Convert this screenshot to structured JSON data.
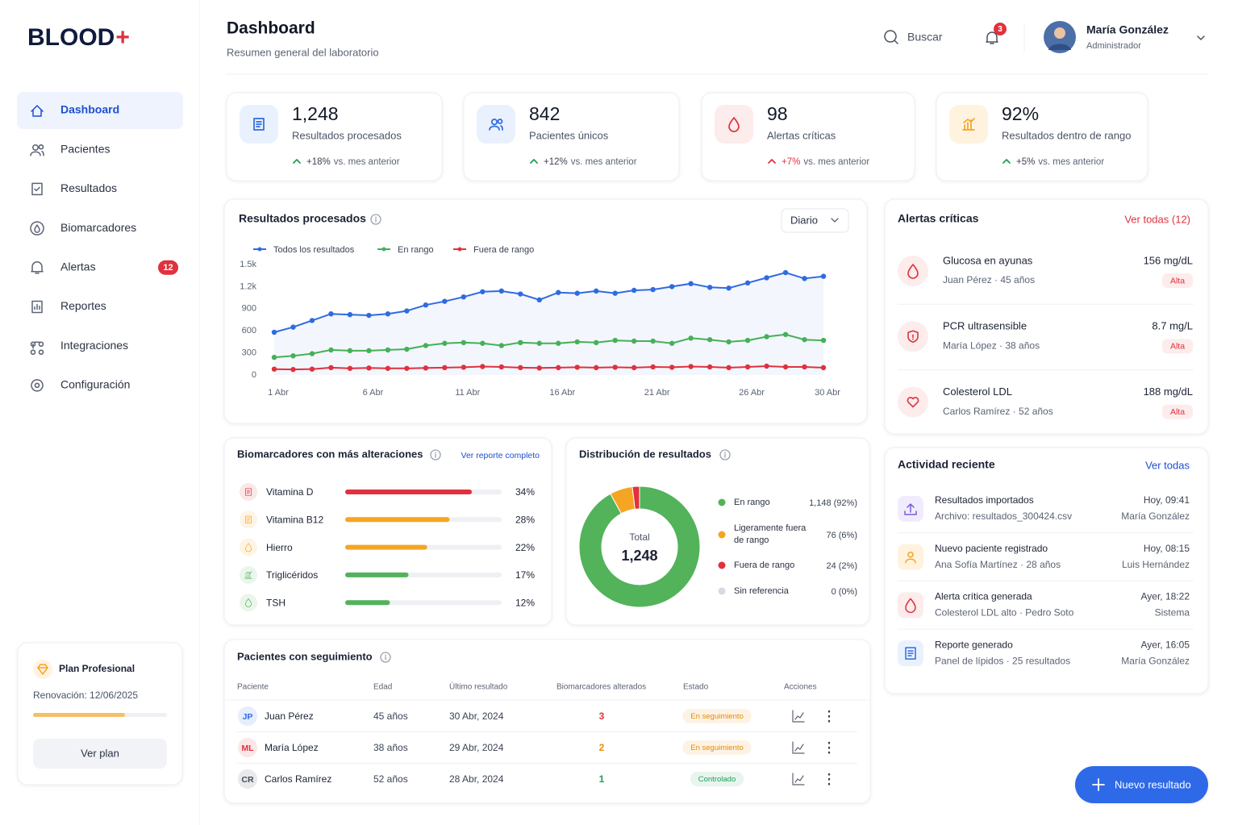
{
  "sidebar": {
    "logo": "BLOOD",
    "logo_mark": "+",
    "nav": [
      {
        "label": "Dashboard"
      },
      {
        "label": "Pacientes"
      },
      {
        "label": "Resultados"
      },
      {
        "label": "Biomarcadores"
      },
      {
        "label": "Alertas",
        "badge": "12"
      },
      {
        "label": "Reportes"
      },
      {
        "label": "Integraciones"
      },
      {
        "label": "Configuración"
      }
    ],
    "plan": {
      "title": "Plan Profesional",
      "renewal": "Renovación: 12/06/2025",
      "button": "Ver plan"
    }
  },
  "header": {
    "title": "Dashboard",
    "subtitle": "Resumen general del laboratorio",
    "search": "Buscar",
    "notifications": "3",
    "user": {
      "name": "María González",
      "role": "Administrador"
    }
  },
  "stats": [
    {
      "value": "1,248",
      "label": "Resultados procesados",
      "change": "+18%",
      "note": "vs. mes anterior",
      "color": "#1f9d55"
    },
    {
      "value": "842",
      "label": "Pacientes únicos",
      "change": "+12%",
      "note": "vs. mes anterior",
      "color": "#1f9d55"
    },
    {
      "value": "98",
      "label": "Alertas críticas",
      "change": "+7%",
      "note": "vs. mes anterior",
      "color": "#e0313e"
    },
    {
      "value": "92%",
      "label": "Resultados dentro de rango",
      "change": "+5%",
      "note": "vs. mes anterior",
      "color": "#1f9d55"
    }
  ],
  "chart_data": [
    {
      "type": "line",
      "title": "Resultados procesados",
      "period": "Diario",
      "x": [
        1,
        2,
        3,
        4,
        5,
        6,
        7,
        8,
        9,
        10,
        11,
        12,
        13,
        14,
        15,
        16,
        17,
        18,
        19,
        20,
        21,
        22,
        23,
        24,
        25,
        26,
        27,
        28,
        29,
        30
      ],
      "xlim": [
        1,
        30
      ],
      "xticks": [
        {
          "value": 1,
          "label": "1 Abr"
        },
        {
          "value": 6,
          "label": "6 Abr"
        },
        {
          "value": 11,
          "label": "11 Abr"
        },
        {
          "value": 16,
          "label": "16 Abr"
        },
        {
          "value": 21,
          "label": "21 Abr"
        },
        {
          "value": 26,
          "label": "26 Abr"
        },
        {
          "value": 30,
          "label": "30 Abr"
        }
      ],
      "ylim": [
        0,
        1500
      ],
      "yticks": [
        0,
        300,
        600,
        900,
        {
          "value": 1200,
          "label": "1.2k"
        },
        {
          "value": 1500,
          "label": "1.5k"
        }
      ],
      "grid": false,
      "series": [
        {
          "name": "Todos los resultados",
          "color": "#2f6be0",
          "values": [
            580,
            650,
            740,
            830,
            820,
            810,
            830,
            870,
            950,
            1000,
            1060,
            1130,
            1140,
            1100,
            1020,
            1120,
            1110,
            1140,
            1110,
            1150,
            1160,
            1200,
            1240,
            1190,
            1180,
            1250,
            1320,
            1390,
            1310,
            1340
          ]
        },
        {
          "name": "En rango",
          "color": "#45b058",
          "values": [
            240,
            260,
            290,
            340,
            330,
            330,
            340,
            350,
            400,
            430,
            440,
            430,
            400,
            440,
            430,
            430,
            450,
            440,
            470,
            460,
            460,
            430,
            500,
            480,
            450,
            470,
            520,
            550,
            480,
            470
          ]
        },
        {
          "name": "Fuera de rango",
          "color": "#e0313e",
          "values": [
            80,
            75,
            80,
            100,
            90,
            95,
            90,
            90,
            95,
            100,
            105,
            115,
            110,
            100,
            95,
            100,
            105,
            100,
            105,
            100,
            110,
            105,
            115,
            110,
            100,
            110,
            120,
            110,
            110,
            100
          ]
        }
      ]
    },
    {
      "type": "bar",
      "orientation": "horizontal",
      "title": "Biomarcadores con más alteraciones",
      "link": "Ver reporte completo",
      "categories": [
        "Vitamina D",
        "Vitamina B12",
        "Hierro",
        "Triglicéridos",
        "TSH"
      ],
      "values": [
        34,
        28,
        22,
        17,
        12
      ],
      "value_labels": [
        "34%",
        "28%",
        "22%",
        "17%",
        "12%"
      ],
      "colors": [
        "#e0313e",
        "#f5a524",
        "#f5a524",
        "#52b35a",
        "#52b35a"
      ],
      "xlim": [
        0,
        42
      ]
    },
    {
      "type": "pie",
      "donut": true,
      "title": "Distribución de resultados",
      "center_label": "Total",
      "center_value": "1,248",
      "categories": [
        "En rango",
        "Ligeramente fuera de rango",
        "Fuera de rango",
        "Sin referencia"
      ],
      "values": [
        1148,
        76,
        24,
        0
      ],
      "value_labels": [
        "1,148 (92%)",
        "76 (6%)",
        "24 (2%)",
        "0 (0%)"
      ],
      "colors": [
        "#52b35a",
        "#f5a524",
        "#e0313e",
        "#d5dae3"
      ]
    }
  ],
  "alerts": {
    "title": "Alertas críticas",
    "link": "Ver todas (12)",
    "items": [
      {
        "name": "Glucosa en ayunas",
        "patient": "Juan Pérez · 45 años",
        "value": "156 mg/dL",
        "level": "Alta"
      },
      {
        "name": "PCR ultrasensible",
        "patient": "María López · 38 años",
        "value": "8.7 mg/L",
        "level": "Alta"
      },
      {
        "name": "Colesterol LDL",
        "patient": "Carlos Ramírez · 52 años",
        "value": "188 mg/dL",
        "level": "Alta"
      }
    ]
  },
  "activity": {
    "title": "Actividad reciente",
    "link": "Ver todas",
    "items": [
      {
        "title": "Resultados importados",
        "detail": "Archivo: resultados_300424.csv",
        "time": "Hoy, 09:41",
        "user": "María González"
      },
      {
        "title": "Nuevo paciente registrado",
        "detail": "Ana Sofía Martínez · 28 años",
        "time": "Hoy, 08:15",
        "user": "Luis Hernández"
      },
      {
        "title": "Alerta crítica generada",
        "detail": "Colesterol LDL alto · Pedro Soto",
        "time": "Ayer, 18:22",
        "user": "Sistema"
      },
      {
        "title": "Reporte generado",
        "detail": "Panel de lípidos · 25 resultados",
        "time": "Ayer, 16:05",
        "user": "María González"
      }
    ]
  },
  "patients": {
    "title": "Pacientes con seguimiento",
    "columns": [
      "Paciente",
      "Edad",
      "Último resultado",
      "Biomarcadores alterados",
      "Estado",
      "Acciones"
    ],
    "rows": [
      {
        "initials": "JP",
        "name": "Juan Pérez",
        "age": "45 años",
        "last": "30 Abr, 2024",
        "altered": "3",
        "status": "En seguimiento",
        "color": "#e0313e",
        "status_color": "#e88a00",
        "avatar_color": "#2f6be0"
      },
      {
        "initials": "ML",
        "name": "María López",
        "age": "38 años",
        "last": "29 Abr, 2024",
        "altered": "2",
        "status": "En seguimiento",
        "color": "#f08c00",
        "status_color": "#e88a00",
        "avatar_color": "#e0313e"
      },
      {
        "initials": "CR",
        "name": "Carlos Ramírez",
        "age": "52 años",
        "last": "28 Abr, 2024",
        "altered": "1",
        "status": "Controlado",
        "color": "#1f9d55",
        "status_color": "#1f9d55",
        "avatar_color": "#444b5a"
      }
    ]
  },
  "fab": "Nuevo resultado"
}
